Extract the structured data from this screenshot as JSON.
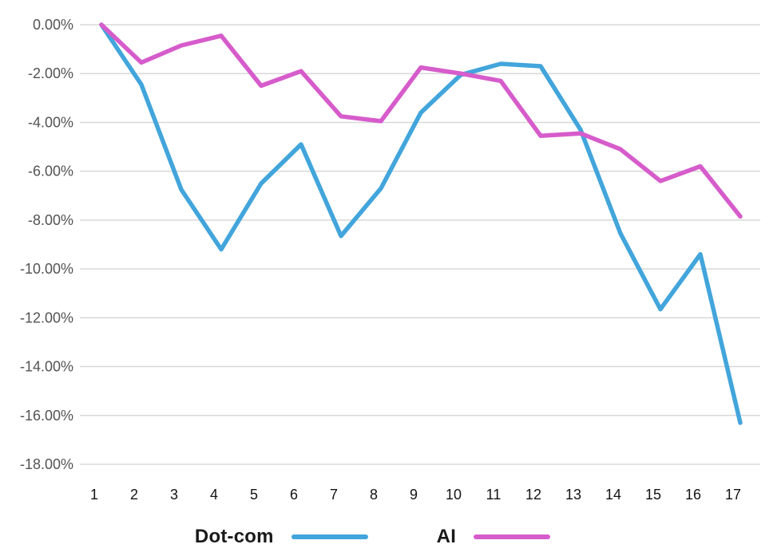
{
  "chart_data": {
    "type": "line",
    "title": "",
    "xlabel": "",
    "ylabel": "",
    "categories": [
      "1",
      "2",
      "3",
      "4",
      "5",
      "6",
      "7",
      "8",
      "9",
      "10",
      "11",
      "12",
      "13",
      "14",
      "15",
      "16",
      "17"
    ],
    "series": [
      {
        "name": "Dot-com",
        "color": "#42a5db",
        "values": [
          0.0,
          -2.45,
          -6.75,
          -9.2,
          -6.5,
          -4.9,
          -8.65,
          -6.7,
          -3.6,
          -2.05,
          -1.6,
          -1.7,
          -4.3,
          -8.55,
          -11.65,
          -9.4,
          -16.3
        ]
      },
      {
        "name": "AI",
        "color": "#d65ccb",
        "values": [
          0.0,
          -1.55,
          -0.85,
          -0.45,
          -2.5,
          -1.9,
          -3.75,
          -3.95,
          -1.75,
          -2.0,
          -2.3,
          -4.55,
          -4.45,
          -5.1,
          -6.4,
          -5.8,
          -7.85
        ]
      }
    ],
    "yticks": {
      "labels": [
        "0.00%",
        "-2.00%",
        "-4.00%",
        "-6.00%",
        "-8.00%",
        "-10.00%",
        "-12.00%",
        "-14.00%",
        "-16.00%",
        "-18.00%"
      ],
      "values": [
        0,
        -2,
        -4,
        -6,
        -8,
        -10,
        -12,
        -14,
        -16,
        -18
      ]
    },
    "ylim": [
      -18,
      0
    ],
    "grid": "horizontal",
    "legend_position": "bottom"
  },
  "colors": {
    "background": "#ffffff",
    "gridline": "#d8d8d8",
    "y_tick_text": "#535353",
    "x_tick_text": "#141414",
    "legend_text": "#1a1a1a"
  }
}
